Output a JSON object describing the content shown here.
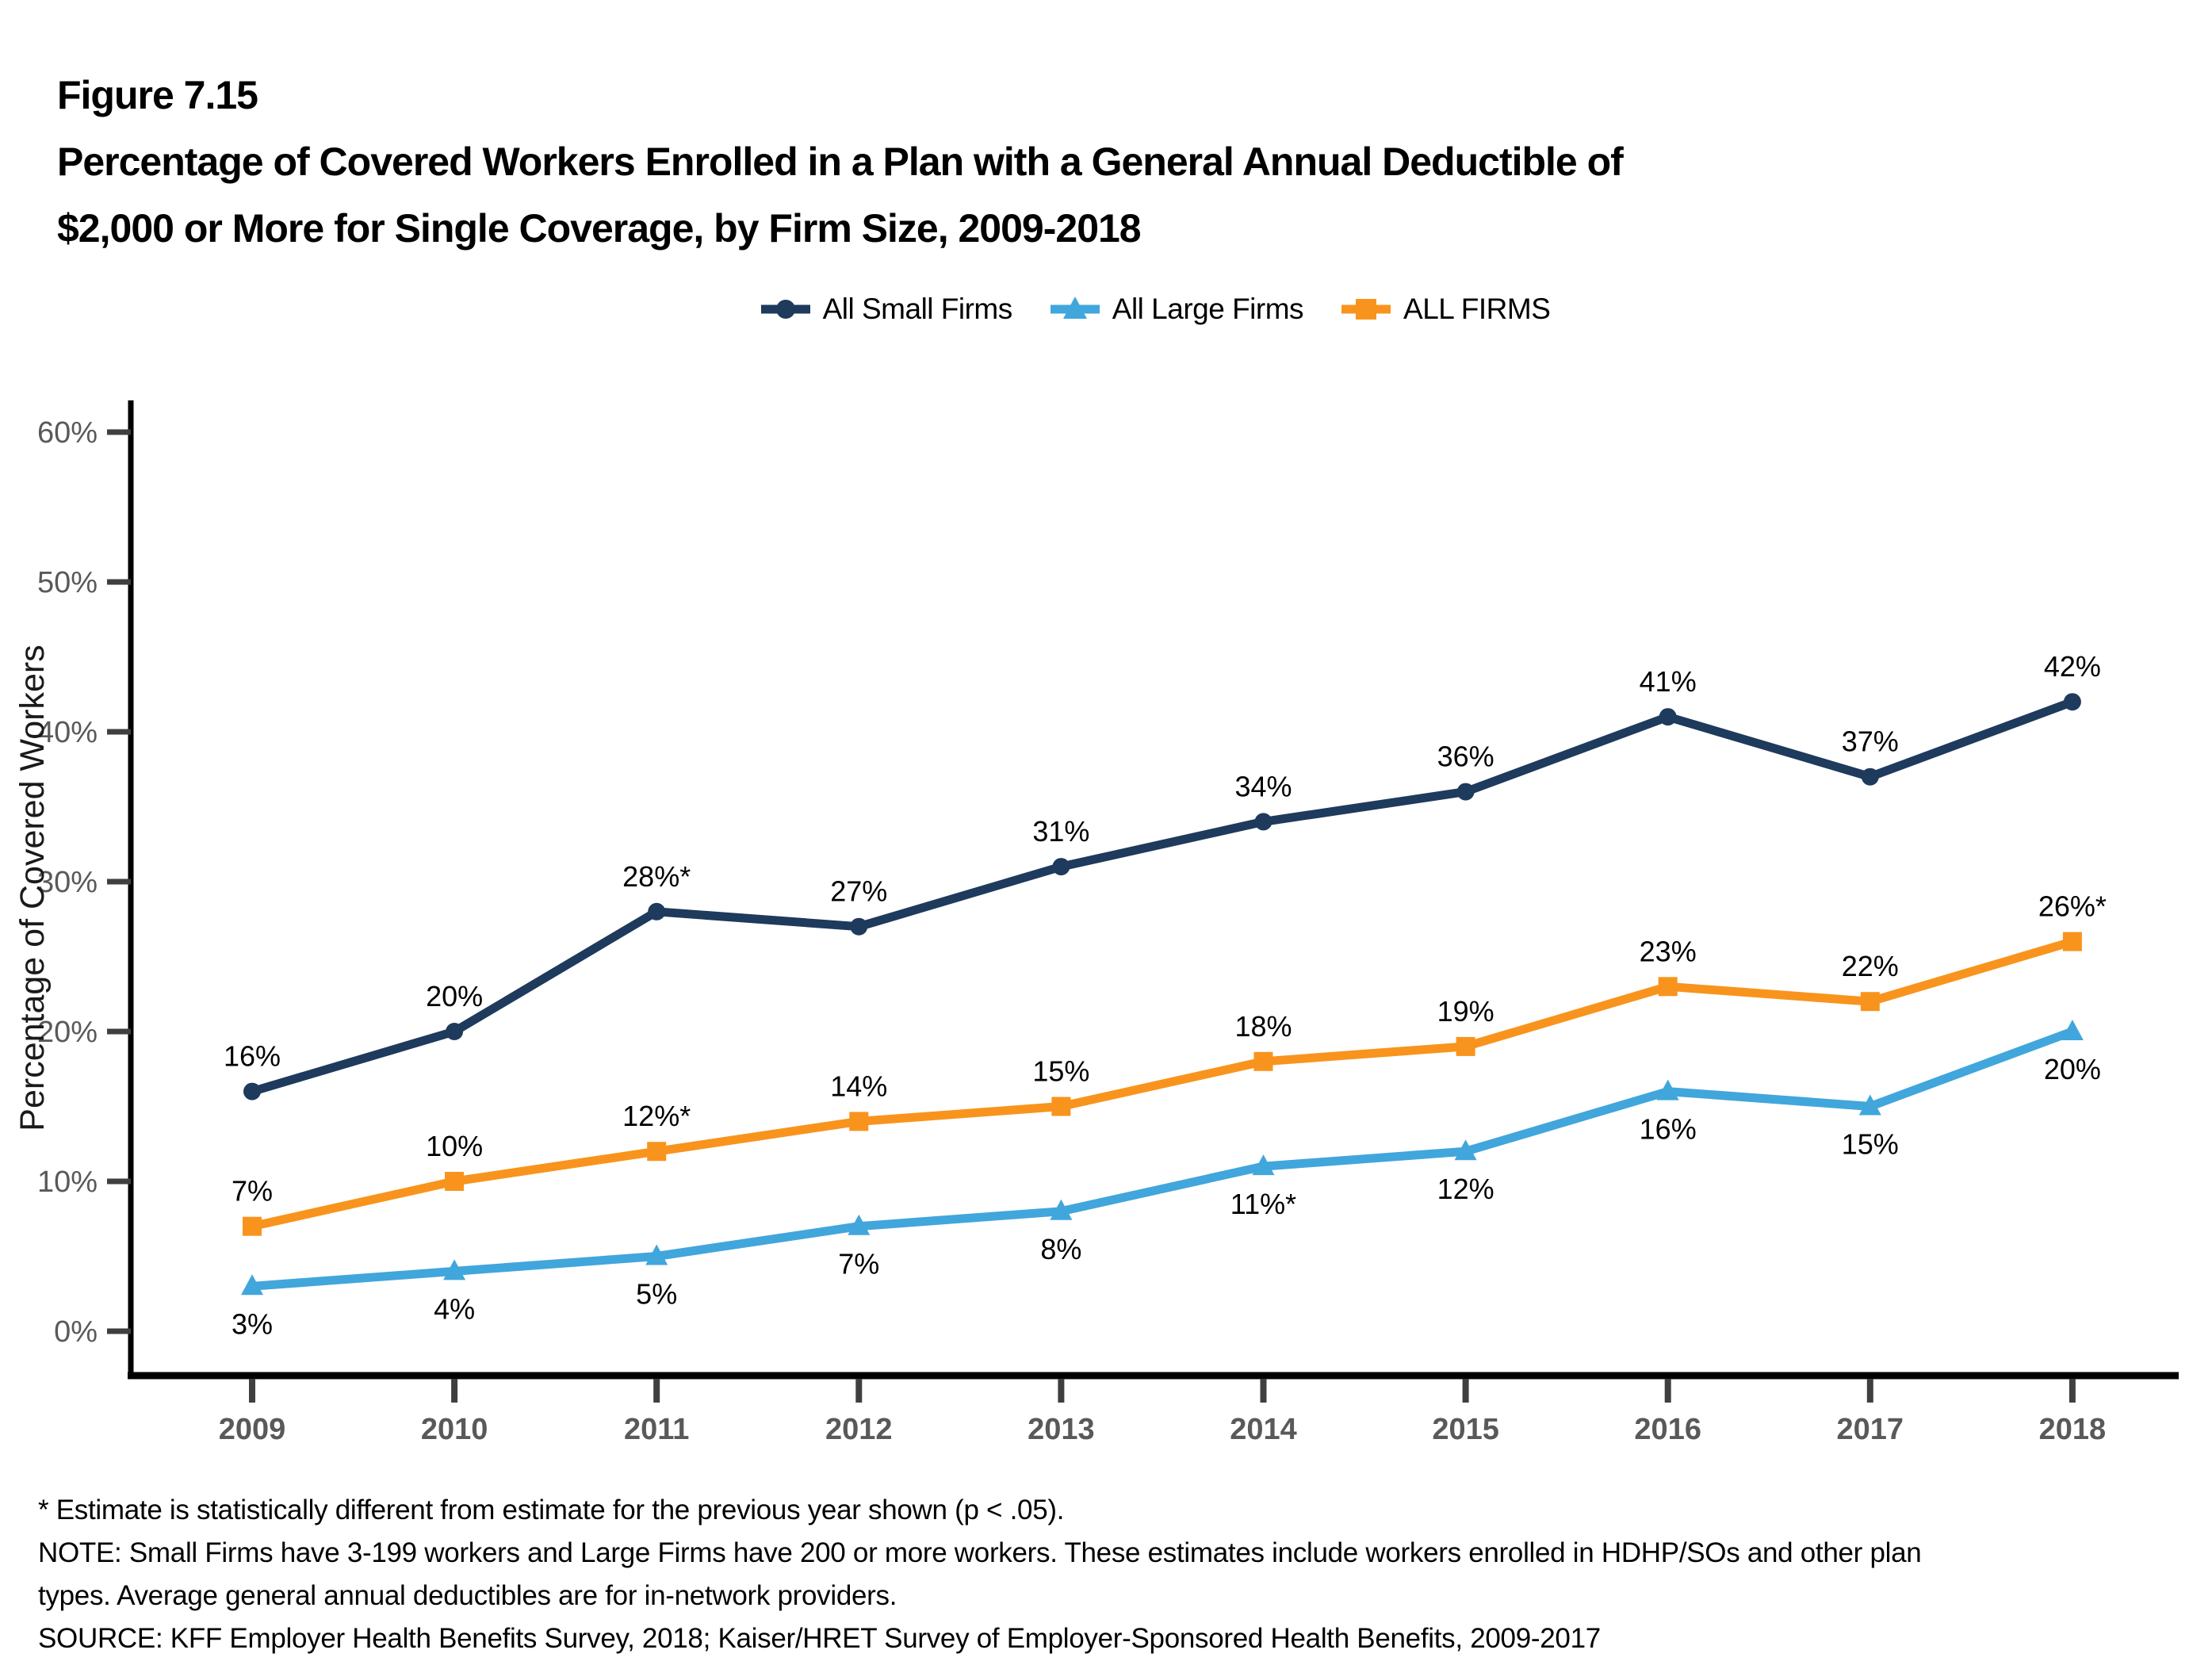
{
  "title": {
    "figure_label": "Figure 7.15",
    "line1": "Percentage of Covered Workers Enrolled in a Plan with a General Annual Deductible of",
    "line2": "$2,000 or More for Single Coverage, by Firm Size, 2009-2018"
  },
  "chart_data": {
    "type": "line",
    "title": "Percentage of Covered Workers Enrolled in a Plan with a General Annual Deductible of $2,000 or More for Single Coverage, by Firm Size, 2009-2018",
    "categories": [
      "2009",
      "2010",
      "2011",
      "2012",
      "2013",
      "2014",
      "2015",
      "2016",
      "2017",
      "2018"
    ],
    "series": [
      {
        "name": "All Small Firms",
        "color": "#1E3A5C",
        "marker": "circle",
        "label_position": "above",
        "values": [
          16,
          20,
          28,
          27,
          31,
          34,
          36,
          41,
          37,
          42
        ],
        "labels": [
          "16%",
          "20%",
          "28%*",
          "27%",
          "31%",
          "34%",
          "36%",
          "41%",
          "37%",
          "42%"
        ]
      },
      {
        "name": "All Large Firms",
        "color": "#41A6DC",
        "marker": "triangle",
        "label_position": "below",
        "values": [
          3,
          4,
          5,
          7,
          8,
          11,
          12,
          16,
          15,
          20
        ],
        "labels": [
          "3%",
          "4%",
          "5%",
          "7%",
          "8%",
          "11%*",
          "12%",
          "16%",
          "15%",
          "20%"
        ]
      },
      {
        "name": "ALL FIRMS",
        "color": "#F8941D",
        "marker": "square",
        "label_position": "above",
        "values": [
          7,
          10,
          12,
          14,
          15,
          18,
          19,
          23,
          22,
          26
        ],
        "labels": [
          "7%",
          "10%",
          "12%*",
          "14%",
          "15%",
          "18%",
          "19%",
          "23%",
          "22%",
          "26%*"
        ]
      }
    ],
    "xlabel": "",
    "ylabel": "Percentage of Covered Workers",
    "ylim": [
      0,
      62
    ],
    "yticks": [
      {
        "value": 0,
        "label": "0%"
      },
      {
        "value": 10,
        "label": "10%"
      },
      {
        "value": 20,
        "label": "20%"
      },
      {
        "value": 30,
        "label": "30%"
      },
      {
        "value": 40,
        "label": "40%"
      },
      {
        "value": 50,
        "label": "50%"
      },
      {
        "value": 60,
        "label": "60%"
      }
    ],
    "grid": false,
    "legend_position": "top-center"
  },
  "footnotes": {
    "lines": [
      "* Estimate is statistically different from estimate for the previous year shown (p < .05).",
      "NOTE: Small Firms have 3-199 workers and Large Firms have 200 or more workers. These estimates include workers enrolled in HDHP/SOs and other plan",
      "types. Average general annual deductibles are for in-network providers.",
      "SOURCE: KFF Employer Health Benefits Survey, 2018; Kaiser/HRET Survey of Employer-Sponsored Health Benefits, 2009-2017"
    ]
  }
}
